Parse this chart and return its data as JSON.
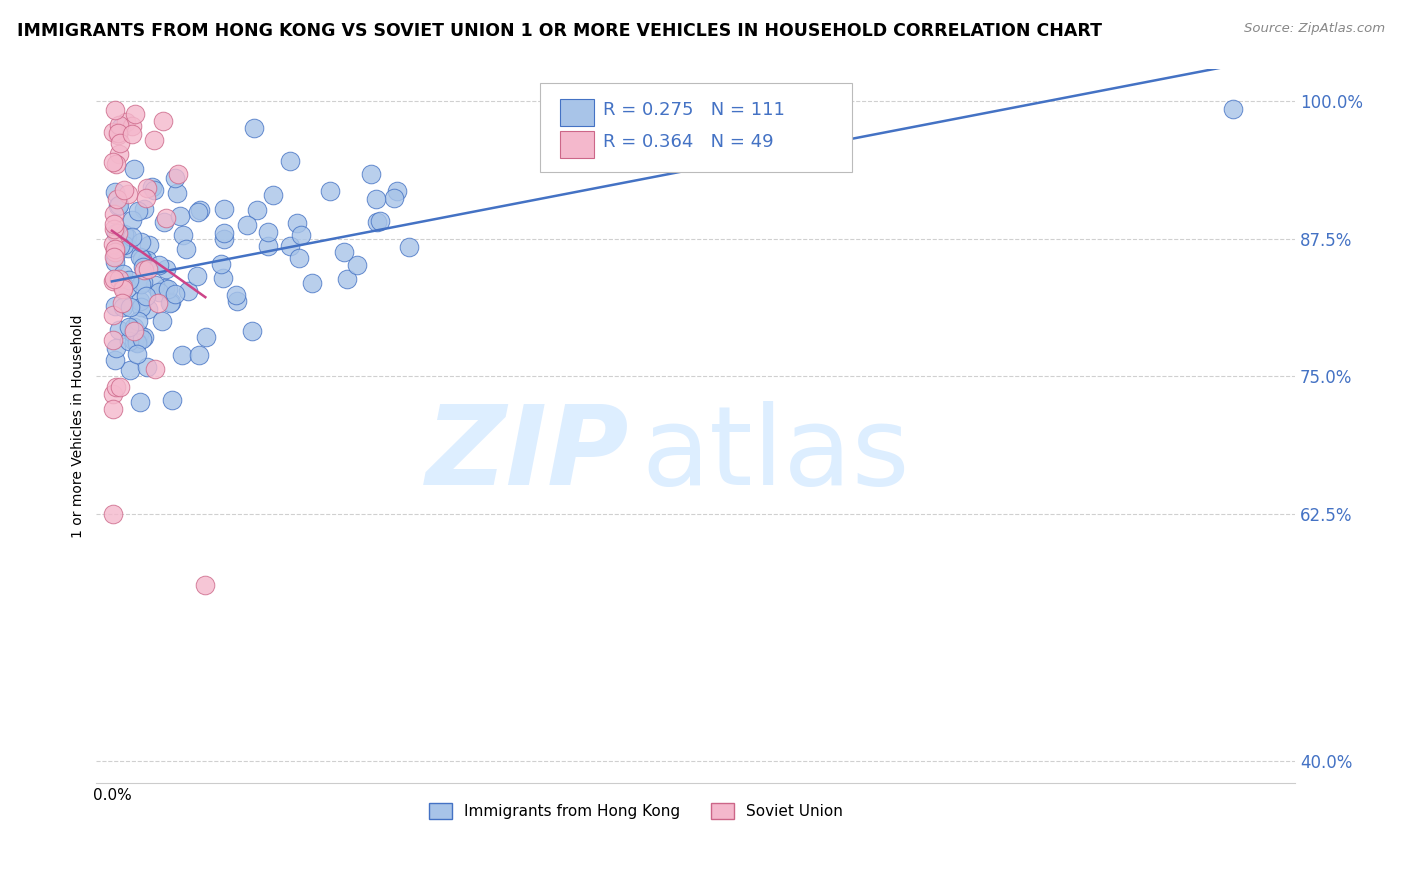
{
  "title": "IMMIGRANTS FROM HONG KONG VS SOVIET UNION 1 OR MORE VEHICLES IN HOUSEHOLD CORRELATION CHART",
  "source_text": "Source: ZipAtlas.com",
  "ylabel": "1 or more Vehicles in Household",
  "R1": 0.275,
  "N1": 111,
  "R2": 0.364,
  "N2": 49,
  "legend_label1": "Immigrants from Hong Kong",
  "legend_label2": "Soviet Union",
  "color_hk_fill": "#a8c4e8",
  "color_hk_edge": "#4472c4",
  "color_su_fill": "#f4b8cc",
  "color_su_edge": "#cc6688",
  "color_hk_line": "#4472c4",
  "color_su_line": "#cc4488",
  "ytick_vals": [
    0.4,
    0.625,
    0.75,
    0.875,
    1.0
  ],
  "ytick_labels": [
    "40.0%",
    "62.5%",
    "75.0%",
    "87.5%",
    "100.0%"
  ],
  "watermark_zip": "ZIP",
  "watermark_atlas": "atlas"
}
